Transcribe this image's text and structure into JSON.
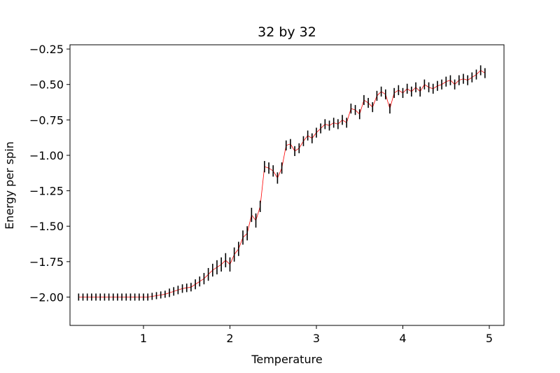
{
  "chart_data": {
    "type": "line",
    "title": "32 by 32",
    "xlabel": "Temperature",
    "ylabel": "Energy per spin",
    "xlim": [
      0.15,
      5.17
    ],
    "ylim": [
      -2.2,
      -0.22
    ],
    "xticks": [
      1,
      2,
      3,
      4,
      5
    ],
    "yticks": [
      -2.0,
      -1.75,
      -1.5,
      -1.25,
      -1.0,
      -0.75,
      -0.5,
      -0.25
    ],
    "xtick_labels": [
      "1",
      "2",
      "3",
      "4",
      "5"
    ],
    "ytick_labels": [
      "−2.00",
      "−1.75",
      "−1.50",
      "−1.25",
      "−1.00",
      "−0.75",
      "−0.50",
      "−0.25"
    ],
    "grid": false,
    "line_color": "#ff0000",
    "errorbar_color": "#000000",
    "series": [
      {
        "x": [
          0.25,
          0.3,
          0.35,
          0.4,
          0.45,
          0.5,
          0.55,
          0.6,
          0.65,
          0.7,
          0.75,
          0.8,
          0.85,
          0.9,
          0.95,
          1.0,
          1.05,
          1.1,
          1.15,
          1.2,
          1.25,
          1.3,
          1.35,
          1.4,
          1.45,
          1.5,
          1.55,
          1.6,
          1.65,
          1.7,
          1.75,
          1.8,
          1.85,
          1.9,
          1.95,
          2.0,
          2.05,
          2.1,
          2.15,
          2.2,
          2.25,
          2.3,
          2.35,
          2.4,
          2.45,
          2.5,
          2.55,
          2.6,
          2.65,
          2.7,
          2.75,
          2.8,
          2.85,
          2.9,
          2.95,
          3.0,
          3.05,
          3.1,
          3.15,
          3.2,
          3.25,
          3.3,
          3.35,
          3.4,
          3.45,
          3.5,
          3.55,
          3.6,
          3.65,
          3.7,
          3.75,
          3.8,
          3.85,
          3.9,
          3.95,
          4.0,
          4.05,
          4.1,
          4.15,
          4.2,
          4.25,
          4.3,
          4.35,
          4.4,
          4.45,
          4.5,
          4.55,
          4.6,
          4.65,
          4.7,
          4.75,
          4.8,
          4.85,
          4.9,
          4.95
        ],
        "y": [
          -2.0,
          -2.0,
          -2.0,
          -2.0,
          -2.0,
          -2.0,
          -2.0,
          -2.0,
          -2.0,
          -2.0,
          -2.0,
          -2.0,
          -2.0,
          -2.0,
          -2.0,
          -2.0,
          -2.0,
          -1.995,
          -1.99,
          -1.985,
          -1.98,
          -1.97,
          -1.96,
          -1.95,
          -1.94,
          -1.935,
          -1.93,
          -1.91,
          -1.89,
          -1.87,
          -1.84,
          -1.81,
          -1.79,
          -1.77,
          -1.74,
          -1.77,
          -1.7,
          -1.66,
          -1.58,
          -1.55,
          -1.42,
          -1.46,
          -1.36,
          -1.08,
          -1.09,
          -1.11,
          -1.16,
          -1.09,
          -0.93,
          -0.92,
          -0.97,
          -0.95,
          -0.9,
          -0.86,
          -0.88,
          -0.84,
          -0.81,
          -0.78,
          -0.79,
          -0.77,
          -0.78,
          -0.75,
          -0.77,
          -0.67,
          -0.68,
          -0.71,
          -0.61,
          -0.63,
          -0.66,
          -0.58,
          -0.55,
          -0.57,
          -0.67,
          -0.56,
          -0.54,
          -0.56,
          -0.53,
          -0.55,
          -0.52,
          -0.55,
          -0.5,
          -0.52,
          -0.53,
          -0.51,
          -0.5,
          -0.48,
          -0.47,
          -0.5,
          -0.47,
          -0.46,
          -0.47,
          -0.45,
          -0.43,
          -0.4,
          -0.42
        ],
        "yerr": [
          0.025,
          0.025,
          0.025,
          0.025,
          0.025,
          0.025,
          0.025,
          0.025,
          0.025,
          0.025,
          0.025,
          0.025,
          0.025,
          0.025,
          0.025,
          0.025,
          0.025,
          0.025,
          0.025,
          0.025,
          0.025,
          0.03,
          0.03,
          0.03,
          0.03,
          0.03,
          0.03,
          0.035,
          0.035,
          0.04,
          0.045,
          0.045,
          0.05,
          0.05,
          0.05,
          0.05,
          0.05,
          0.05,
          0.05,
          0.05,
          0.05,
          0.05,
          0.04,
          0.04,
          0.04,
          0.04,
          0.04,
          0.04,
          0.035,
          0.035,
          0.035,
          0.035,
          0.035,
          0.035,
          0.035,
          0.035,
          0.035,
          0.035,
          0.035,
          0.035,
          0.035,
          0.035,
          0.035,
          0.035,
          0.035,
          0.035,
          0.035,
          0.035,
          0.035,
          0.035,
          0.035,
          0.035,
          0.035,
          0.035,
          0.035,
          0.035,
          0.035,
          0.035,
          0.035,
          0.035,
          0.035,
          0.035,
          0.035,
          0.035,
          0.035,
          0.035,
          0.035,
          0.035,
          0.035,
          0.035,
          0.035,
          0.035,
          0.035,
          0.035,
          0.035
        ]
      }
    ]
  }
}
